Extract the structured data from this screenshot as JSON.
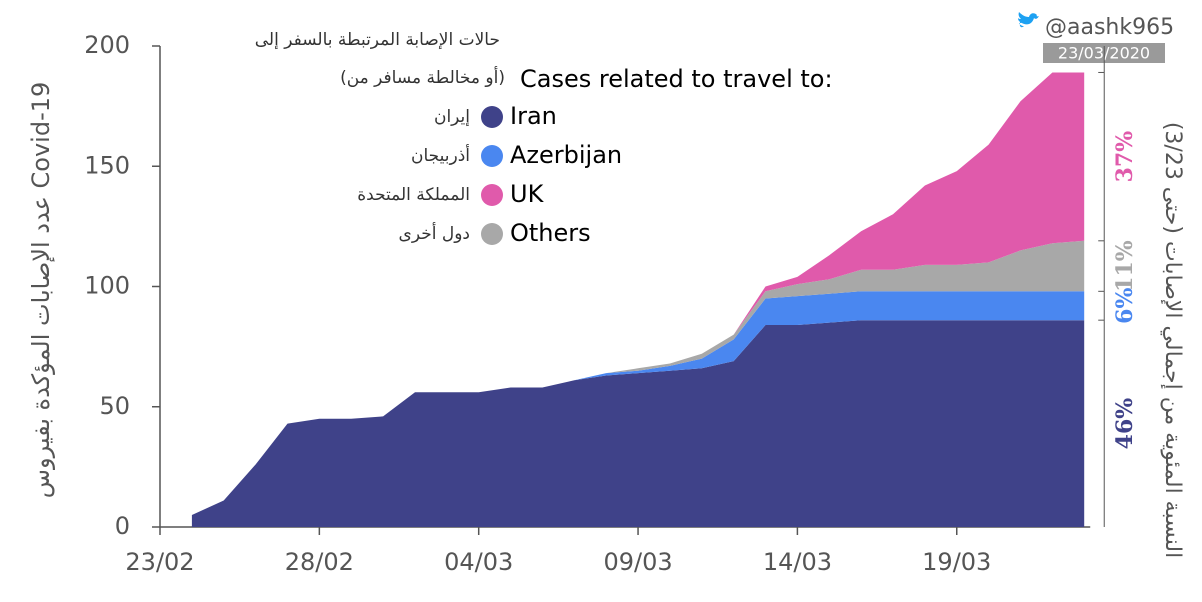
{
  "chart_data": {
    "type": "stacked-area",
    "legend_title": "Cases related to travel to:",
    "legend_title_ar": [
      "حالات الإصابة المرتبطة بالسفر إلى",
      "(أو مخالطة مسافر من)"
    ],
    "y_axis_label": "عدد الإصابات المؤكدة بفيروس Covid-19",
    "y2_axis_label": "النسبة المئوية من إجمالي الإصابات (حتى 3/23)",
    "watermark": "@aashk965",
    "date_stamp": "23/03/2020",
    "categories": [
      "23/02",
      null,
      null,
      null,
      null,
      "28/02",
      null,
      null,
      null,
      null,
      "04/03",
      null,
      null,
      null,
      null,
      "09/03",
      null,
      null,
      null,
      null,
      "14/03",
      null,
      null,
      null,
      null,
      "19/03",
      null,
      null,
      null,
      null
    ],
    "ylim": [
      0,
      200
    ],
    "yticks": [
      0,
      50,
      100,
      150,
      200
    ],
    "series": [
      {
        "name": "Iran",
        "name_ar": "إيران",
        "color": "#3f4289",
        "share_label": "46%",
        "values": [
          null,
          5,
          11,
          26,
          43,
          45,
          45,
          46,
          56,
          56,
          56,
          58,
          58,
          61,
          63,
          64,
          65,
          66,
          69,
          84,
          84,
          85,
          86,
          86,
          86,
          86,
          86,
          86,
          86,
          86
        ]
      },
      {
        "name": "Azerbijan",
        "name_ar": "أذربيجان",
        "color": "#4a87f0",
        "share_label": "6%",
        "values": [
          null,
          0,
          0,
          0,
          0,
          0,
          0,
          0,
          0,
          0,
          0,
          0,
          0,
          0,
          1,
          1,
          2,
          4,
          9,
          11,
          12,
          12,
          12,
          12,
          12,
          12,
          12,
          12,
          12,
          12
        ]
      },
      {
        "name": "Others",
        "name_ar": "دول أخرى",
        "color": "#a8a8a8",
        "share_label": "11%",
        "values": [
          null,
          0,
          0,
          0,
          0,
          0,
          0,
          0,
          0,
          0,
          0,
          0,
          0,
          0,
          0,
          1,
          1,
          2,
          2,
          3,
          5,
          6,
          9,
          9,
          11,
          11,
          12,
          17,
          20,
          21
        ]
      },
      {
        "name": "UK",
        "name_ar": "المملكة المتحدة",
        "color": "#e05aab",
        "share_label": "37%",
        "values": [
          null,
          0,
          0,
          0,
          0,
          0,
          0,
          0,
          0,
          0,
          0,
          0,
          0,
          0,
          0,
          0,
          0,
          0,
          0,
          2,
          3,
          10,
          16,
          23,
          33,
          39,
          49,
          62,
          71,
          70
        ]
      }
    ],
    "legend_order": [
      0,
      1,
      3,
      2
    ]
  }
}
